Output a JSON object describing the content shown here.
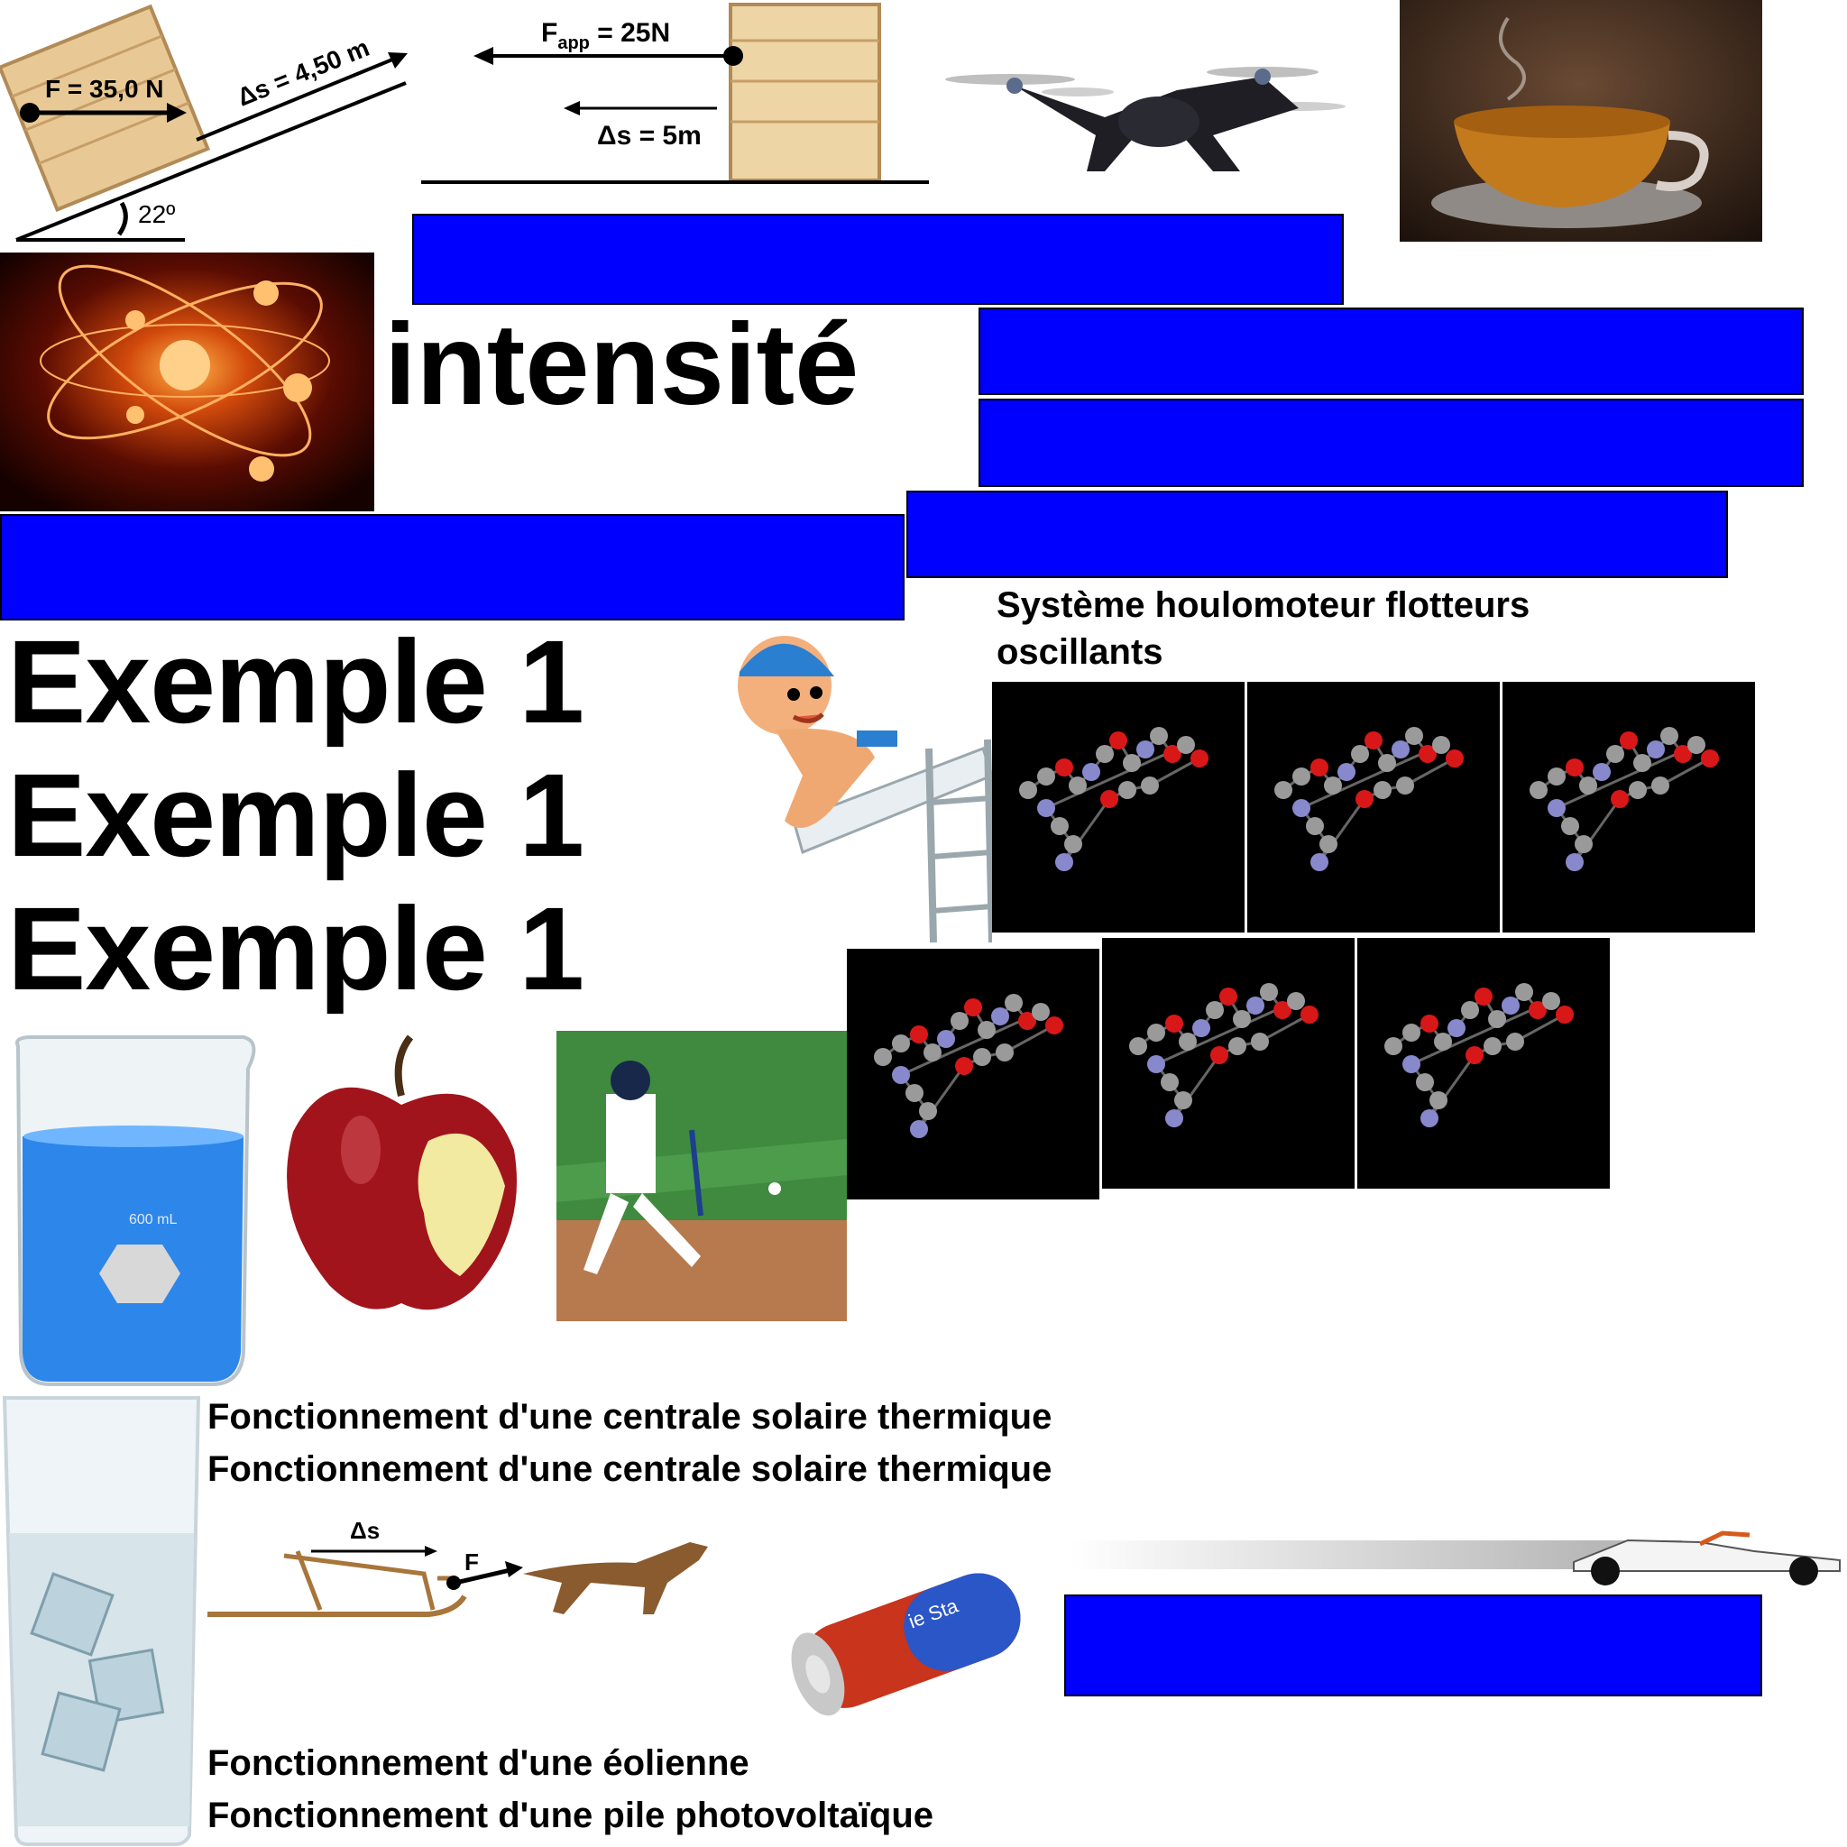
{
  "heading": {
    "intensite": "intensité"
  },
  "examples": [
    "Exemple 1",
    "Exemple 1",
    "Exemple 1"
  ],
  "captions": {
    "houlomoteur": "Système houlomoteur flotteurs oscillants",
    "solaire_1": "Fonctionnement d'une centrale solaire thermique",
    "solaire_2": "Fonctionnement d'une centrale solaire thermique",
    "eolienne": "Fonctionnement d'une éolienne",
    "pile": "Fonctionnement d'une pile photovoltaïque"
  },
  "ramp_diagram": {
    "force": "F = 35,0 N",
    "displacement": "Δs = 4,50 m",
    "angle": "22º"
  },
  "crate_diagram": {
    "force_main": "F",
    "force_sub": "app",
    "force_value": " = 25N",
    "displacement": "Δs = 5m"
  },
  "sled_diagram": {
    "displacement": "Δs",
    "force": "F"
  },
  "beaker": {
    "volume": "600 mL"
  },
  "battery": {
    "text": "ie Sta"
  },
  "colors": {
    "redaction_bar": "#0000ff",
    "molecule_background": "#000000"
  },
  "icons": [
    "crate-ramp-diagram",
    "crate-push-diagram",
    "drone-image",
    "tea-cup-image",
    "atom-image",
    "diver-cartoon",
    "molecule-image",
    "beaker-image",
    "apple-image",
    "baseball-image",
    "water-glass-image",
    "sled-dog-diagram",
    "battery-image",
    "race-car-image"
  ]
}
